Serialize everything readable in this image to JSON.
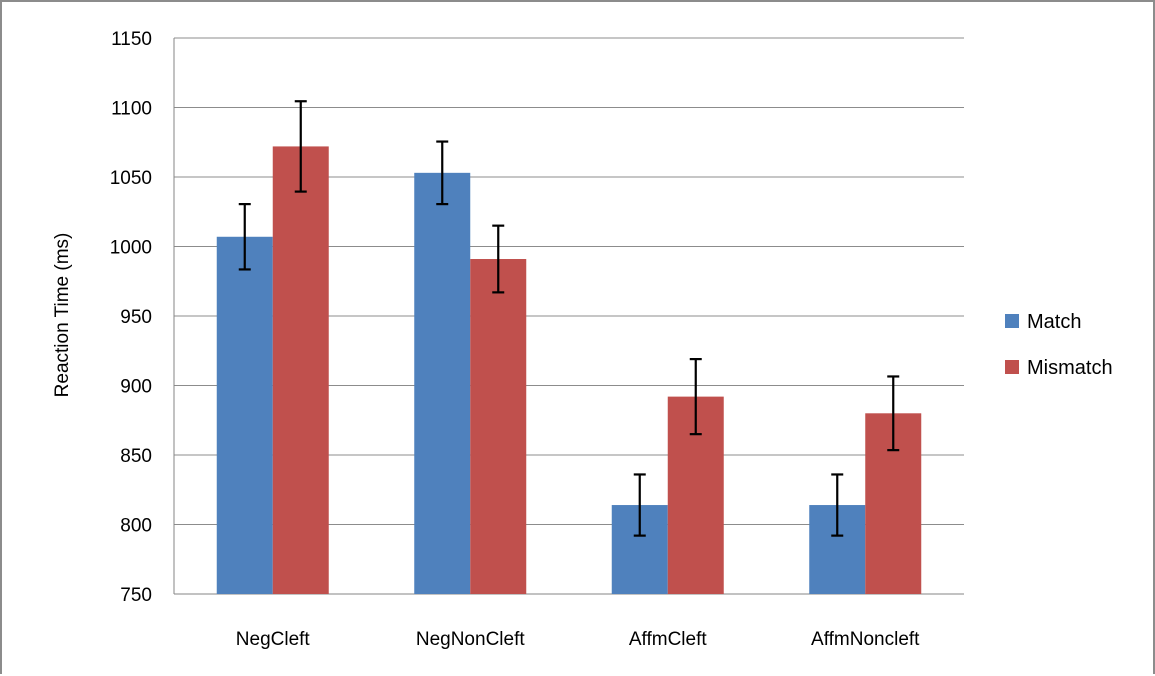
{
  "chart_data": {
    "type": "bar",
    "title": "",
    "xlabel": "",
    "ylabel": "Reaction Time (ms)",
    "ylim": [
      750,
      1150
    ],
    "yticks": [
      750,
      800,
      850,
      900,
      950,
      1000,
      1050,
      1100,
      1150
    ],
    "grid": true,
    "legend_position": "right",
    "categories": [
      "NegCleft",
      "NegNonCleft",
      "AffmCleft",
      "AffmNoncleft"
    ],
    "series": [
      {
        "name": "Match",
        "color": "#4f81bd",
        "values": [
          1007,
          1053,
          814,
          814
        ],
        "error": [
          23.5,
          22.5,
          22,
          22
        ]
      },
      {
        "name": "Mismatch",
        "color": "#c0504d",
        "values": [
          1072,
          991,
          892,
          880
        ],
        "error": [
          32.5,
          24,
          27,
          26.5
        ]
      }
    ]
  }
}
